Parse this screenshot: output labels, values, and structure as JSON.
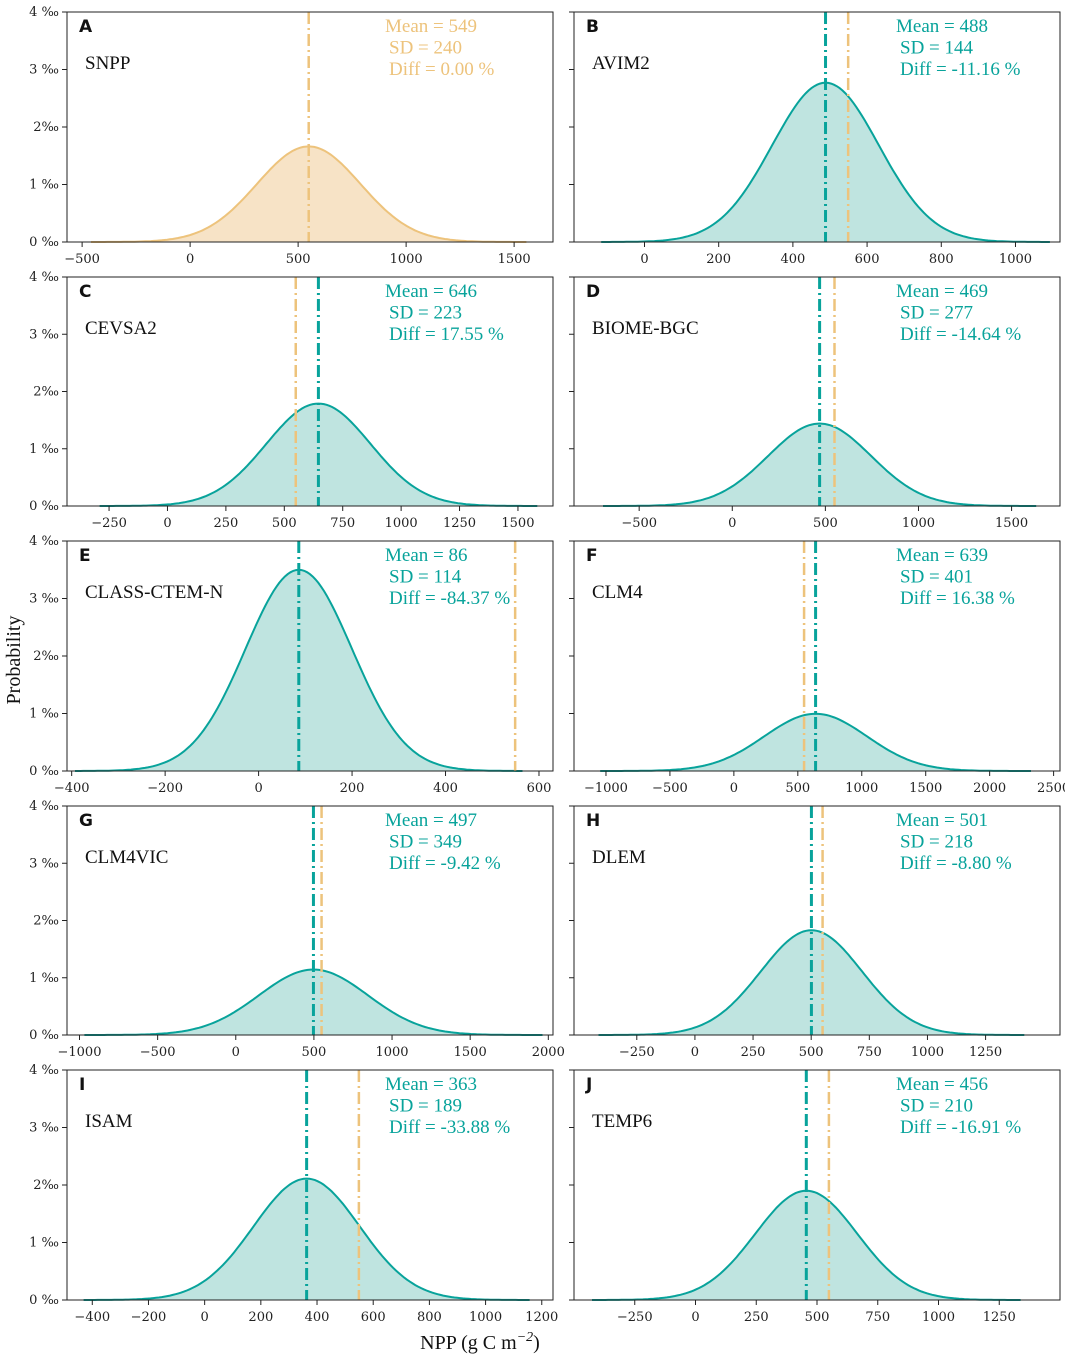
{
  "figure": {
    "ylabel": "Probability",
    "xlabel": "NPP (g C m",
    "xlabel_exp": "−2",
    "xlabel_close": ")",
    "ylim_permille": [
      0,
      4
    ],
    "y_ticks": [
      "0 ‰",
      "1 ‰",
      "2‰",
      "3 ‰",
      "4 ‰"
    ]
  },
  "colors": {
    "reference": "#EDC37C",
    "reference_fill": "#F7E3C6",
    "model": "#08A39B",
    "model_fill": "#BFE4E0",
    "axis": "#222222"
  },
  "reference_mean": 549,
  "chart_data": [
    {
      "panel": "A",
      "model": "SNPP",
      "type": "area",
      "mean": 549,
      "sd": 240,
      "diff": "Diff = 0.00 %",
      "mean_label": "Mean = 549",
      "sd_label": "SD = 240",
      "is_reference": true,
      "xlim": [
        -570,
        1680
      ],
      "xticks": [
        -500,
        0,
        500,
        1000,
        1500
      ]
    },
    {
      "panel": "B",
      "model": "AVIM2",
      "type": "area",
      "mean": 488,
      "sd": 144,
      "diff": "Diff = -11.16 %",
      "mean_label": "Mean = 488",
      "sd_label": "SD = 144",
      "is_reference": false,
      "xlim": [
        -190,
        1120
      ],
      "xticks": [
        0,
        200,
        400,
        600,
        800,
        1000
      ]
    },
    {
      "panel": "C",
      "model": "CEVSA2",
      "type": "area",
      "mean": 646,
      "sd": 223,
      "diff": "Diff = 17.55 %",
      "mean_label": "Mean = 646",
      "sd_label": "SD = 223",
      "is_reference": false,
      "xlim": [
        -430,
        1650
      ],
      "xticks": [
        -250,
        0,
        250,
        500,
        750,
        1000,
        1250,
        1500
      ]
    },
    {
      "panel": "D",
      "model": "BIOME-BGC",
      "type": "area",
      "mean": 469,
      "sd": 277,
      "diff": "Diff = -14.64 %",
      "mean_label": "Mean = 469",
      "sd_label": "SD = 277",
      "is_reference": false,
      "xlim": [
        -850,
        1760
      ],
      "xticks": [
        -500,
        0,
        500,
        1000,
        1500
      ]
    },
    {
      "panel": "E",
      "model": "CLASS-CTEM-N",
      "type": "area",
      "mean": 86,
      "sd": 114,
      "diff": "Diff = -84.37 %",
      "mean_label": "Mean = 86",
      "sd_label": "SD = 114",
      "is_reference": false,
      "xlim": [
        -410,
        630
      ],
      "xticks": [
        -400,
        -200,
        0,
        200,
        400,
        600
      ]
    },
    {
      "panel": "F",
      "model": "CLM4",
      "type": "area",
      "mean": 639,
      "sd": 401,
      "diff": "Diff = 16.38 %",
      "mean_label": "Mean = 639",
      "sd_label": "SD = 401",
      "is_reference": false,
      "xlim": [
        -1250,
        2550
      ],
      "xticks": [
        -1000,
        -500,
        0,
        500,
        1000,
        1500,
        2000,
        2500
      ]
    },
    {
      "panel": "G",
      "model": "CLM4VIC",
      "type": "area",
      "mean": 497,
      "sd": 349,
      "diff": "Diff = -9.42 %",
      "mean_label": "Mean = 497",
      "sd_label": "SD = 349",
      "is_reference": false,
      "xlim": [
        -1080,
        2030
      ],
      "xticks": [
        -1000,
        -500,
        0,
        500,
        1000,
        1500,
        2000
      ]
    },
    {
      "panel": "H",
      "model": "DLEM",
      "type": "area",
      "mean": 501,
      "sd": 218,
      "diff": "Diff = -8.80 %",
      "mean_label": "Mean = 501",
      "sd_label": "SD = 218",
      "is_reference": false,
      "xlim": [
        -520,
        1570
      ],
      "xticks": [
        -250,
        0,
        250,
        500,
        750,
        1000,
        1250
      ]
    },
    {
      "panel": "I",
      "model": "ISAM",
      "type": "area",
      "mean": 363,
      "sd": 189,
      "diff": "Diff = -33.88 %",
      "mean_label": "Mean = 363",
      "sd_label": "SD = 189",
      "is_reference": false,
      "xlim": [
        -490,
        1240
      ],
      "xticks": [
        -400,
        -200,
        0,
        200,
        400,
        600,
        800,
        1000,
        1200
      ]
    },
    {
      "panel": "J",
      "model": "TEMP6",
      "type": "area",
      "mean": 456,
      "sd": 210,
      "diff": "Diff = -16.91 %",
      "mean_label": "Mean = 456",
      "sd_label": "SD = 210",
      "is_reference": false,
      "xlim": [
        -500,
        1500
      ],
      "xticks": [
        -250,
        0,
        250,
        500,
        750,
        1000,
        1250
      ]
    }
  ]
}
